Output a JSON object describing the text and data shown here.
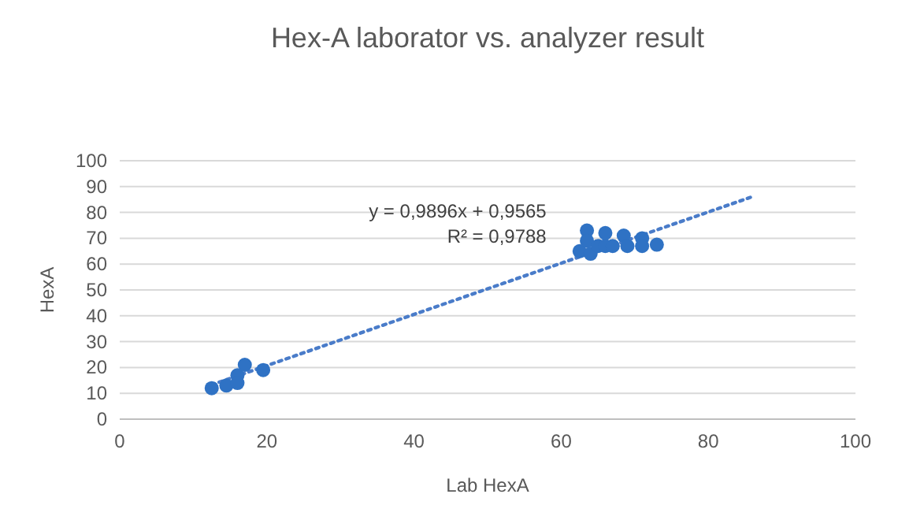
{
  "chart_data": {
    "type": "scatter",
    "title": "Hex-A laborator vs. analyzer result",
    "xlabel": "Lab HexA",
    "ylabel": "HexA",
    "xlim": [
      0,
      100
    ],
    "xticks": [
      0,
      20,
      40,
      60,
      80,
      100
    ],
    "ylim": [
      0,
      100
    ],
    "yticks": [
      0,
      10,
      20,
      30,
      40,
      50,
      60,
      70,
      80,
      90,
      100
    ],
    "grid": "y",
    "marker": "circle",
    "series": [
      {
        "color": "#2f72c4",
        "x": [
          12.5,
          14.5,
          16,
          16,
          17,
          19.5,
          62.5,
          63.5,
          63.5,
          64,
          65,
          66,
          66,
          67,
          68.5,
          69,
          71,
          71,
          73
        ],
        "values": [
          12,
          13,
          17,
          14,
          21,
          19,
          65,
          73,
          69,
          64,
          67,
          72,
          67,
          67,
          71,
          67,
          70,
          67,
          67.5
        ]
      },
      {
        "type": "line",
        "color": "#4a7cc9",
        "line_style": "dotted",
        "marker": "none",
        "x": [
          12.5,
          86
        ],
        "values": [
          13.3,
          86.1
        ]
      }
    ],
    "annotations": [
      "y = 0,9896x + 0,9565",
      "R² = 0,9788"
    ]
  }
}
